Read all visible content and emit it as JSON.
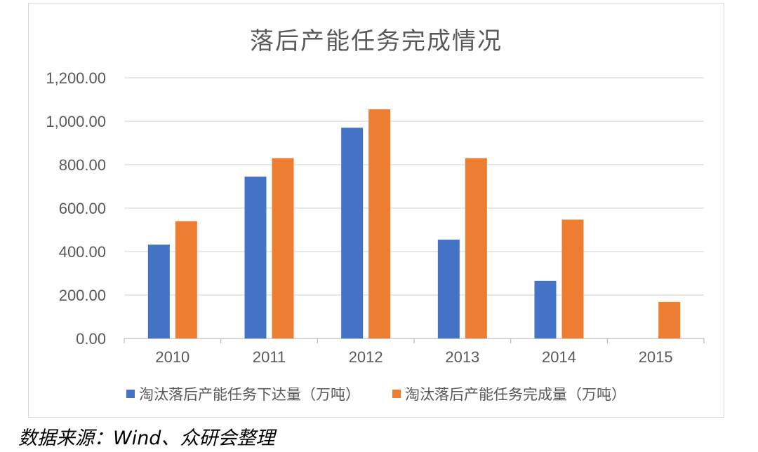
{
  "chart_data": {
    "type": "bar",
    "title": "落后产能任务完成情况",
    "categories": [
      "2010",
      "2011",
      "2012",
      "2013",
      "2014",
      "2015"
    ],
    "series": [
      {
        "name": "淘汰落后产能任务下达量（万吨）",
        "color": "#4472c4",
        "values": [
          432,
          745,
          970,
          455,
          265,
          null
        ]
      },
      {
        "name": "淘汰落后产能任务完成量（万吨）",
        "color": "#ed7d31",
        "values": [
          540,
          830,
          1055,
          830,
          547,
          168
        ]
      }
    ],
    "ylim": [
      0,
      1200
    ],
    "yticks": [
      "0.00",
      "200.00",
      "400.00",
      "600.00",
      "800.00",
      "1,000.00",
      "1,200.00"
    ],
    "grid": true,
    "legend_position": "bottom"
  },
  "source_note": "数据来源：Wind、众研会整理"
}
